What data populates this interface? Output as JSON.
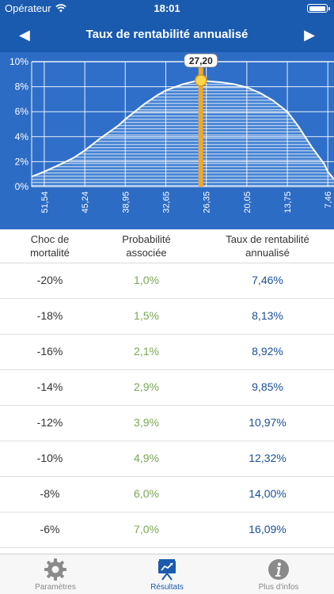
{
  "status": {
    "carrier": "Opérateur",
    "time": "18:01"
  },
  "nav": {
    "title": "Taux de rentabilité annualisé",
    "prev_icon": "arrow-left-icon",
    "next_icon": "arrow-right-icon"
  },
  "chart_data": {
    "type": "area",
    "y_ticks": [
      "10%",
      "8%",
      "6%",
      "4%",
      "2%",
      "0%"
    ],
    "x_ticks": [
      "51,54",
      "45,24",
      "38,95",
      "32,65",
      "26,35",
      "20,05",
      "13,75",
      "7,46"
    ],
    "ylim": [
      0,
      10
    ],
    "xlim": [
      53.5,
      6.5
    ],
    "x": [
      53.5,
      51.54,
      49,
      47,
      45.24,
      43,
      40,
      38.95,
      36,
      34,
      32.65,
      30,
      28,
      27.2,
      26.35,
      24,
      22,
      20.05,
      18,
      16,
      14,
      13.75,
      12,
      10,
      8,
      7.46,
      6.5
    ],
    "y": [
      0.8,
      1.2,
      1.8,
      2.3,
      2.9,
      3.8,
      4.9,
      5.4,
      6.6,
      7.3,
      7.7,
      8.2,
      8.45,
      8.5,
      8.45,
      8.35,
      8.2,
      7.95,
      7.5,
      6.9,
      6.1,
      6.0,
      4.8,
      3.2,
      1.8,
      1.2,
      0.6
    ],
    "marker": {
      "x": 27.2,
      "label": "27,20"
    },
    "grid": true,
    "colors": {
      "background": "#2d6cc4",
      "plot": "#2f6fc9",
      "line": "#ffffff",
      "marker": "#f5a623"
    }
  },
  "table": {
    "headers": [
      "Choc de\nmortalité",
      "Probabilité\nassociée",
      "Taux de rentabilité\nannualisé"
    ],
    "rows": [
      [
        "-20%",
        "1,0%",
        "7,46%"
      ],
      [
        "-18%",
        "1,5%",
        "8,13%"
      ],
      [
        "-16%",
        "2,1%",
        "8,92%"
      ],
      [
        "-14%",
        "2,9%",
        "9,85%"
      ],
      [
        "-12%",
        "3,9%",
        "10,97%"
      ],
      [
        "-10%",
        "4,9%",
        "12,32%"
      ],
      [
        "-8%",
        "6,0%",
        "14,00%"
      ],
      [
        "-6%",
        "7,0%",
        "16,09%"
      ]
    ]
  },
  "tabbar": {
    "tabs": [
      {
        "label": "Paramètres",
        "icon": "gear-icon",
        "active": false
      },
      {
        "label": "Résultats",
        "icon": "chart-board-icon",
        "active": true
      },
      {
        "label": "Plus d'infos",
        "icon": "info-icon",
        "active": false
      }
    ]
  }
}
